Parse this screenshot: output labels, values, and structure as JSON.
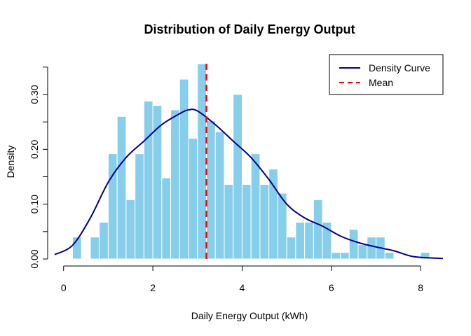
{
  "chart_data": {
    "type": "bar",
    "title": "Distribution of Daily Energy Output",
    "xlabel": "Daily Energy Output (kWh)",
    "ylabel": "Density",
    "xlim": [
      -0.2,
      8.5
    ],
    "ylim": [
      0,
      0.36
    ],
    "x_ticks": [
      "0",
      "2",
      "4",
      "6",
      "8"
    ],
    "y_ticks": [
      "0.00",
      "0.10",
      "0.20",
      "0.30"
    ],
    "bin_width": 0.2,
    "bins": [
      {
        "start": 0.2,
        "value": 0.04
      },
      {
        "start": 0.4,
        "value": 0.0
      },
      {
        "start": 0.6,
        "value": 0.04
      },
      {
        "start": 0.8,
        "value": 0.067
      },
      {
        "start": 1.0,
        "value": 0.192
      },
      {
        "start": 1.2,
        "value": 0.26
      },
      {
        "start": 1.4,
        "value": 0.108
      },
      {
        "start": 1.6,
        "value": 0.192
      },
      {
        "start": 1.8,
        "value": 0.288
      },
      {
        "start": 2.0,
        "value": 0.28
      },
      {
        "start": 2.2,
        "value": 0.148
      },
      {
        "start": 2.4,
        "value": 0.272
      },
      {
        "start": 2.6,
        "value": 0.328
      },
      {
        "start": 2.8,
        "value": 0.22
      },
      {
        "start": 3.0,
        "value": 0.356
      },
      {
        "start": 3.2,
        "value": 0.252
      },
      {
        "start": 3.4,
        "value": 0.232
      },
      {
        "start": 3.6,
        "value": 0.136
      },
      {
        "start": 3.8,
        "value": 0.3
      },
      {
        "start": 4.0,
        "value": 0.136
      },
      {
        "start": 4.2,
        "value": 0.192
      },
      {
        "start": 4.4,
        "value": 0.136
      },
      {
        "start": 4.6,
        "value": 0.164
      },
      {
        "start": 4.8,
        "value": 0.12
      },
      {
        "start": 5.0,
        "value": 0.04
      },
      {
        "start": 5.2,
        "value": 0.067
      },
      {
        "start": 5.4,
        "value": 0.067
      },
      {
        "start": 5.6,
        "value": 0.108
      },
      {
        "start": 5.8,
        "value": 0.067
      },
      {
        "start": 6.0,
        "value": 0.012
      },
      {
        "start": 6.2,
        "value": 0.012
      },
      {
        "start": 6.4,
        "value": 0.054
      },
      {
        "start": 6.6,
        "value": 0.026
      },
      {
        "start": 6.8,
        "value": 0.04
      },
      {
        "start": 7.0,
        "value": 0.04
      },
      {
        "start": 7.2,
        "value": 0.012
      },
      {
        "start": 7.4,
        "value": 0.0
      },
      {
        "start": 7.6,
        "value": 0.0
      },
      {
        "start": 7.8,
        "value": 0.0
      },
      {
        "start": 8.0,
        "value": 0.012
      }
    ],
    "density_curve": {
      "name": "Density Curve",
      "x": [
        -0.2,
        0.2,
        0.6,
        1.0,
        1.4,
        1.8,
        2.2,
        2.6,
        2.8,
        3.0,
        3.4,
        3.8,
        4.2,
        4.6,
        5.0,
        5.4,
        5.8,
        6.2,
        6.6,
        7.0,
        7.4,
        7.8,
        8.2,
        8.5
      ],
      "y": [
        0.008,
        0.025,
        0.075,
        0.14,
        0.185,
        0.215,
        0.245,
        0.265,
        0.272,
        0.27,
        0.245,
        0.215,
        0.185,
        0.145,
        0.1,
        0.075,
        0.06,
        0.042,
        0.03,
        0.022,
        0.015,
        0.005,
        0.002,
        0.001
      ],
      "color": "#00008B"
    },
    "mean": {
      "name": "Mean",
      "value": 3.2,
      "color": "#FF0000"
    },
    "bar_color": "#87CEEB",
    "legend_position": "top-right",
    "grid": false
  }
}
